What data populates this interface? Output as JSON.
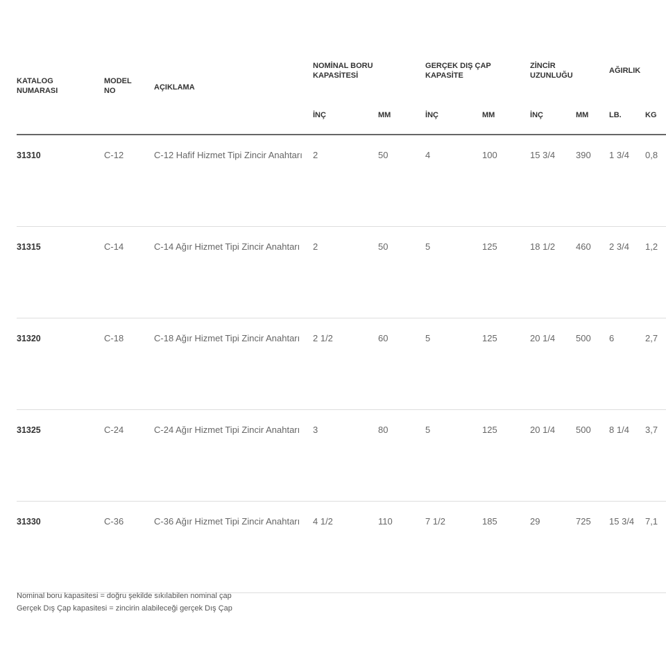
{
  "headers": {
    "katalog": "KATALOG NUMARASI",
    "model": "MODEL NO",
    "aciklama": "AÇIKLAMA",
    "nominal": "NOMİNAL BORU KAPASİTESİ",
    "gercek": "GERÇEK DIŞ ÇAP KAPASİTE",
    "zincir": "ZİNCİR UZUNLUĞU",
    "agirlik": "AĞIRLIK",
    "inc": "İNÇ",
    "mm": "MM",
    "lb": "LB.",
    "kg": "KG"
  },
  "rows": [
    {
      "katalog": "31310",
      "model": "C-12",
      "aciklama": "C-12 Hafif Hizmet Tipi Zincir Anahtarı",
      "nom_inc": "2",
      "nom_mm": "50",
      "ger_inc": "4",
      "ger_mm": "100",
      "zin_inc": "15 3/4",
      "zin_mm": "390",
      "lb": "1 3/4",
      "kg": "0,8"
    },
    {
      "katalog": "31315",
      "model": "C-14",
      "aciklama": "C-14 Ağır Hizmet Tipi Zincir Anahtarı",
      "nom_inc": "2",
      "nom_mm": "50",
      "ger_inc": "5",
      "ger_mm": "125",
      "zin_inc": "18 1/2",
      "zin_mm": "460",
      "lb": "2 3/4",
      "kg": "1,2"
    },
    {
      "katalog": "31320",
      "model": "C-18",
      "aciklama": "C-18 Ağır Hizmet Tipi Zincir Anahtarı",
      "nom_inc": "2 1/2",
      "nom_mm": "60",
      "ger_inc": "5",
      "ger_mm": "125",
      "zin_inc": "20 1/4",
      "zin_mm": "500",
      "lb": "6",
      "kg": "2,7"
    },
    {
      "katalog": "31325",
      "model": "C-24",
      "aciklama": "C-24 Ağır Hizmet Tipi Zincir Anahtarı",
      "nom_inc": "3",
      "nom_mm": "80",
      "ger_inc": "5",
      "ger_mm": "125",
      "zin_inc": "20 1/4",
      "zin_mm": "500",
      "lb": "8 1/4",
      "kg": "3,7"
    },
    {
      "katalog": "31330",
      "model": "C-36",
      "aciklama": "C-36 Ağır Hizmet Tipi Zincir Anahtarı",
      "nom_inc": "4 1/2",
      "nom_mm": "110",
      "ger_inc": "7 1/2",
      "ger_mm": "185",
      "zin_inc": "29",
      "zin_mm": "725",
      "lb": "15 3/4",
      "kg": "7,1"
    }
  ],
  "footnotes": [
    "Nominal boru kapasitesi = doğru şekilde sıkılabilen nominal çap",
    "Gerçek Dış Çap kapasitesi = zincirin alabileceği gerçek Dış Çap"
  ]
}
